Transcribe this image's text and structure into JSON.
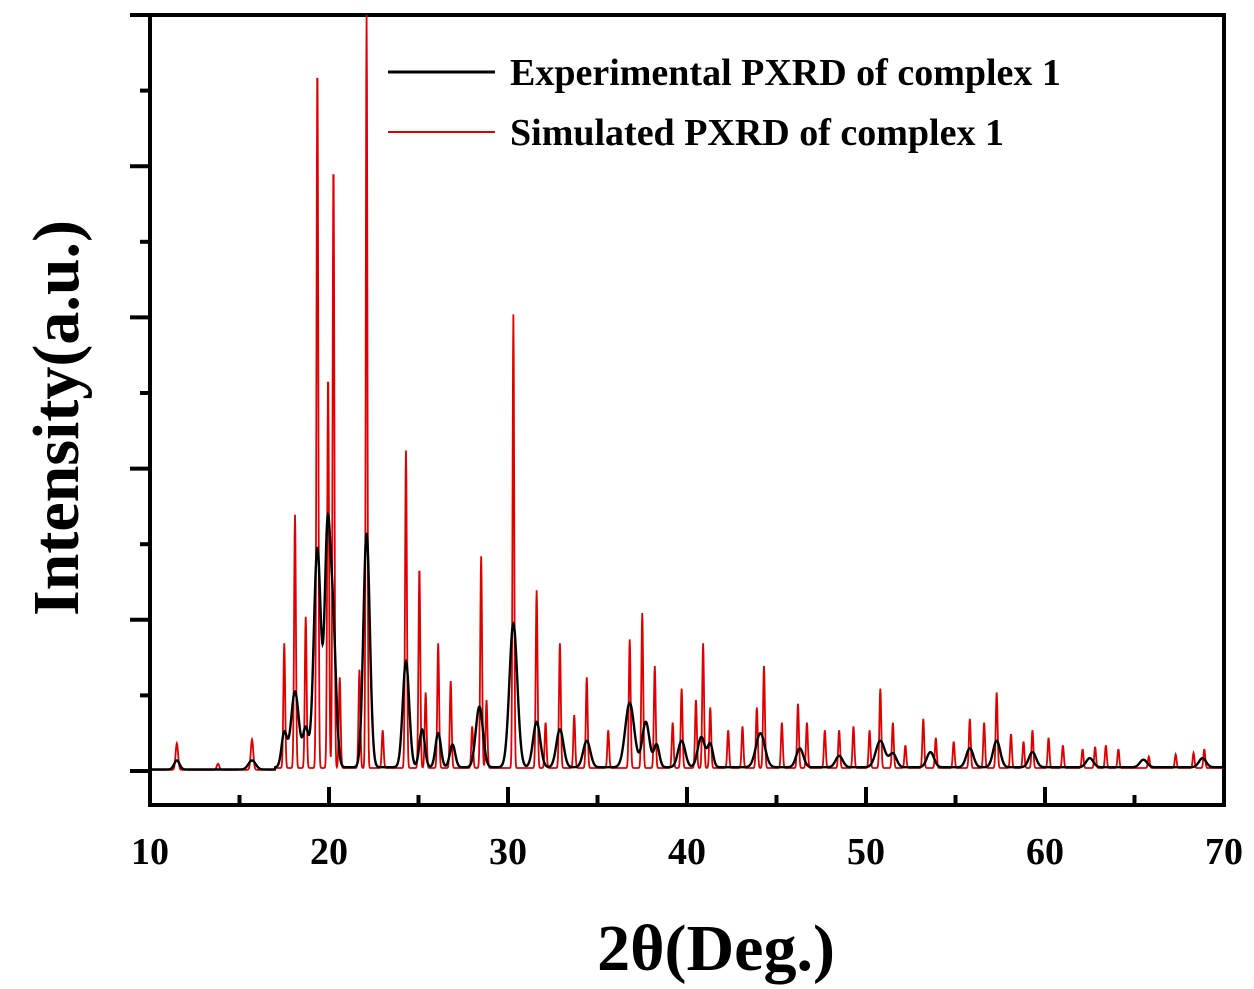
{
  "chart_data": {
    "type": "line",
    "title": "",
    "xlabel": "2θ(Deg.)",
    "ylabel": "Intensity(a.u.)",
    "xlim": [
      10,
      70
    ],
    "ylim": [
      0,
      1.0
    ],
    "x_ticks": [
      "10",
      "20",
      "30",
      "40",
      "50",
      "60",
      "70"
    ],
    "y_tick_labels_shown": false,
    "grid": false,
    "legend_position": "top-right",
    "series": [
      {
        "name": "Experimental PXRD of complex 1",
        "color": "#000000",
        "baseline": 0.005,
        "peaks": [
          [
            11.5,
            0.012,
            0.15
          ],
          [
            15.7,
            0.012,
            0.2
          ],
          [
            17.5,
            0.045,
            0.15
          ],
          [
            18.1,
            0.1,
            0.22
          ],
          [
            18.7,
            0.05,
            0.15
          ],
          [
            19.35,
            0.29,
            0.2
          ],
          [
            19.9,
            0.27,
            0.15
          ],
          [
            20.2,
            0.2,
            0.18
          ],
          [
            22.1,
            0.31,
            0.18
          ],
          [
            24.3,
            0.14,
            0.18
          ],
          [
            25.2,
            0.05,
            0.15
          ],
          [
            26.1,
            0.045,
            0.15
          ],
          [
            26.9,
            0.03,
            0.15
          ],
          [
            28.4,
            0.08,
            0.2
          ],
          [
            30.3,
            0.19,
            0.22
          ],
          [
            31.6,
            0.06,
            0.2
          ],
          [
            32.9,
            0.05,
            0.2
          ],
          [
            34.4,
            0.035,
            0.2
          ],
          [
            36.8,
            0.085,
            0.25
          ],
          [
            37.7,
            0.06,
            0.2
          ],
          [
            38.3,
            0.03,
            0.15
          ],
          [
            39.7,
            0.035,
            0.2
          ],
          [
            40.8,
            0.04,
            0.2
          ],
          [
            41.3,
            0.03,
            0.15
          ],
          [
            44.1,
            0.045,
            0.25
          ],
          [
            46.3,
            0.025,
            0.2
          ],
          [
            48.5,
            0.015,
            0.2
          ],
          [
            50.8,
            0.035,
            0.25
          ],
          [
            51.5,
            0.018,
            0.2
          ],
          [
            53.6,
            0.02,
            0.2
          ],
          [
            55.8,
            0.025,
            0.2
          ],
          [
            57.3,
            0.035,
            0.2
          ],
          [
            59.3,
            0.02,
            0.2
          ],
          [
            62.5,
            0.012,
            0.2
          ],
          [
            65.5,
            0.01,
            0.2
          ],
          [
            68.8,
            0.012,
            0.2
          ]
        ]
      },
      {
        "name": "Simulated PXRD of complex 1",
        "color": "#e00000",
        "baseline": 0.004,
        "peaks": [
          [
            11.5,
            0.035,
            0.07
          ],
          [
            13.8,
            0.008,
            0.07
          ],
          [
            15.7,
            0.04,
            0.07
          ],
          [
            17.5,
            0.165,
            0.05
          ],
          [
            18.1,
            0.335,
            0.05
          ],
          [
            18.7,
            0.2,
            0.05
          ],
          [
            19.35,
            0.93,
            0.05
          ],
          [
            19.95,
            0.52,
            0.05
          ],
          [
            20.25,
            0.8,
            0.05
          ],
          [
            20.6,
            0.12,
            0.05
          ],
          [
            21.7,
            0.13,
            0.05
          ],
          [
            22.1,
            1.0,
            0.045
          ],
          [
            23.0,
            0.05,
            0.05
          ],
          [
            24.3,
            0.42,
            0.05
          ],
          [
            25.05,
            0.265,
            0.05
          ],
          [
            25.4,
            0.1,
            0.05
          ],
          [
            26.1,
            0.165,
            0.05
          ],
          [
            26.8,
            0.115,
            0.05
          ],
          [
            28.0,
            0.055,
            0.05
          ],
          [
            28.5,
            0.28,
            0.05
          ],
          [
            28.8,
            0.09,
            0.05
          ],
          [
            30.3,
            0.6,
            0.045
          ],
          [
            31.6,
            0.235,
            0.05
          ],
          [
            32.1,
            0.06,
            0.05
          ],
          [
            32.9,
            0.165,
            0.05
          ],
          [
            33.7,
            0.07,
            0.05
          ],
          [
            34.4,
            0.12,
            0.05
          ],
          [
            35.6,
            0.05,
            0.05
          ],
          [
            36.8,
            0.17,
            0.05
          ],
          [
            37.5,
            0.205,
            0.05
          ],
          [
            38.2,
            0.135,
            0.05
          ],
          [
            39.2,
            0.06,
            0.05
          ],
          [
            39.7,
            0.105,
            0.05
          ],
          [
            40.5,
            0.09,
            0.05
          ],
          [
            40.9,
            0.165,
            0.05
          ],
          [
            41.3,
            0.08,
            0.05
          ],
          [
            42.3,
            0.05,
            0.05
          ],
          [
            43.1,
            0.055,
            0.05
          ],
          [
            43.9,
            0.08,
            0.05
          ],
          [
            44.3,
            0.135,
            0.05
          ],
          [
            45.3,
            0.06,
            0.05
          ],
          [
            46.2,
            0.085,
            0.05
          ],
          [
            46.7,
            0.06,
            0.05
          ],
          [
            47.7,
            0.05,
            0.05
          ],
          [
            48.5,
            0.05,
            0.05
          ],
          [
            49.3,
            0.055,
            0.05
          ],
          [
            50.2,
            0.05,
            0.05
          ],
          [
            50.8,
            0.105,
            0.05
          ],
          [
            51.5,
            0.06,
            0.05
          ],
          [
            52.2,
            0.03,
            0.05
          ],
          [
            53.2,
            0.065,
            0.05
          ],
          [
            53.9,
            0.04,
            0.05
          ],
          [
            54.9,
            0.035,
            0.05
          ],
          [
            55.8,
            0.065,
            0.05
          ],
          [
            56.6,
            0.06,
            0.05
          ],
          [
            57.3,
            0.1,
            0.05
          ],
          [
            58.1,
            0.045,
            0.05
          ],
          [
            58.8,
            0.035,
            0.05
          ],
          [
            59.3,
            0.05,
            0.05
          ],
          [
            60.2,
            0.04,
            0.05
          ],
          [
            61.0,
            0.03,
            0.05
          ],
          [
            62.1,
            0.025,
            0.05
          ],
          [
            62.8,
            0.028,
            0.05
          ],
          [
            63.4,
            0.03,
            0.05
          ],
          [
            64.1,
            0.025,
            0.05
          ],
          [
            65.8,
            0.015,
            0.05
          ],
          [
            67.3,
            0.018,
            0.05
          ],
          [
            68.3,
            0.02,
            0.05
          ],
          [
            68.9,
            0.025,
            0.05
          ]
        ]
      }
    ]
  }
}
